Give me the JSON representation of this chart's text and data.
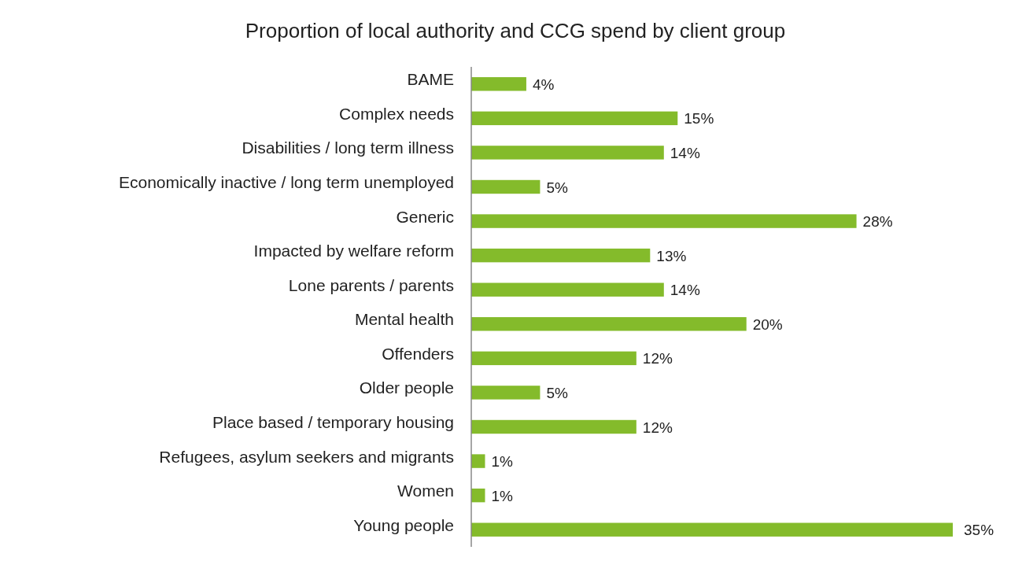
{
  "chart_data": {
    "type": "bar",
    "orientation": "horizontal",
    "title": "Proportion of local authority and CCG spend by client group",
    "categories": [
      "BAME",
      "Complex needs",
      "Disabilities / long term illness",
      "Economically inactive / long term unemployed",
      "Generic",
      "Impacted by welfare reform",
      "Lone parents / parents",
      "Mental health",
      "Offenders",
      "Older people",
      "Place based / temporary housing",
      "Refugees, asylum seekers and migrants",
      "Women",
      "Young people"
    ],
    "values": [
      4,
      15,
      14,
      5,
      28,
      13,
      14,
      20,
      12,
      5,
      12,
      1,
      1,
      35
    ],
    "value_labels": [
      "4%",
      "15%",
      "14%",
      "5%",
      "28%",
      "13%",
      "14%",
      "20%",
      "12%",
      "5%",
      "12%",
      "1%",
      "1%",
      "35%"
    ],
    "color": "#84bb2b"
  }
}
